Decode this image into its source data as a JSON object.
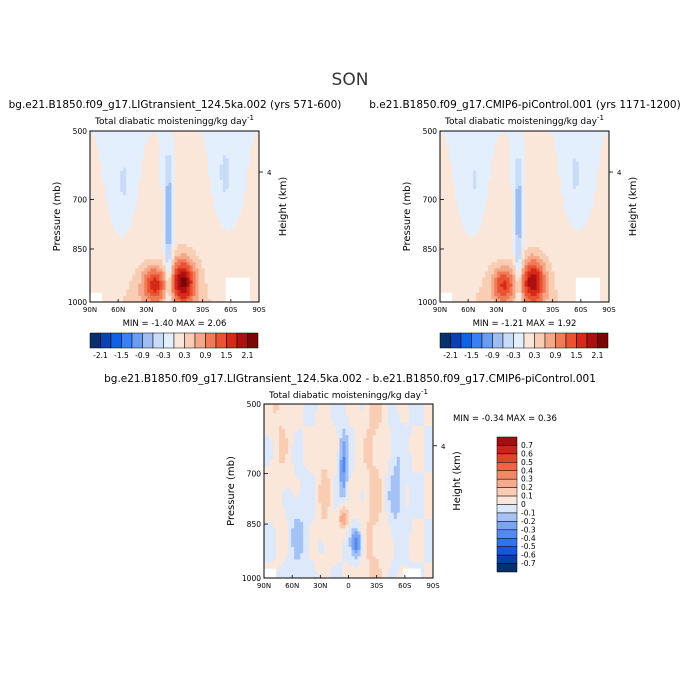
{
  "page_title": "SON",
  "colors": {
    "neg": [
      "#08306b",
      "#0a42b0",
      "#1060e8",
      "#3b7ff5",
      "#6a9cf0",
      "#9fbdf2",
      "#c9dcf7",
      "#e4effd"
    ],
    "pos": [
      "#fbe6da",
      "#f9cdb3",
      "#f5a789",
      "#f07b57",
      "#ea5233",
      "#d52a17",
      "#ad1010",
      "#7a0606"
    ],
    "diff_neg": [
      "#08306b",
      "#0a3fa8",
      "#1658dc",
      "#2f72f0",
      "#5289f2",
      "#7ba5f2",
      "#a4c2f4",
      "#dde9fb"
    ],
    "diff_pos": [
      "#fbe6da",
      "#f9cdb3",
      "#f5ab8c",
      "#f28868",
      "#ee6545",
      "#e0452a",
      "#c8261a",
      "#a01010"
    ],
    "background_field": "#dbe8fa"
  },
  "chart_data": [
    {
      "type": "heatmap",
      "title": "bg.e21.B1850.f09_g17.LIGtransient_124.5ka.002 (yrs 571-600)",
      "subtitle": "Total diabatic moistening",
      "units": "g/kg day",
      "units_exp": "-1",
      "ylabel": "Pressure (mb)",
      "y2label": "Height (km)",
      "xticks": [
        "90N",
        "60N",
        "30N",
        "0",
        "30S",
        "60S",
        "90S"
      ],
      "yticks": [
        "500",
        "700",
        "850",
        "1000"
      ],
      "y2ticks": [
        "4"
      ],
      "min_label": "MIN = ",
      "min_value": "-1.40",
      "max_label": "MAX = ",
      "max_value": "2.06",
      "colorbar_labels": [
        "-2.1",
        "-1.5",
        "-0.9",
        "-0.3",
        "0.3",
        "0.9",
        "1.5",
        "2.1"
      ]
    },
    {
      "type": "heatmap",
      "title": "b.e21.B1850.f09_g17.CMIP6-piControl.001 (yrs 1171-1200)",
      "subtitle": "Total diabatic moistening",
      "units": "g/kg day",
      "units_exp": "-1",
      "ylabel": "Pressure (mb)",
      "y2label": "Height (km)",
      "xticks": [
        "90N",
        "60N",
        "30N",
        "0",
        "30S",
        "60S",
        "90S"
      ],
      "yticks": [
        "500",
        "700",
        "850",
        "1000"
      ],
      "y2ticks": [
        "4"
      ],
      "min_label": "MIN = ",
      "min_value": "-1.21",
      "max_label": "MAX = ",
      "max_value": "1.92",
      "colorbar_labels": [
        "-2.1",
        "-1.5",
        "-0.9",
        "-0.3",
        "0.3",
        "0.9",
        "1.5",
        "2.1"
      ]
    },
    {
      "type": "heatmap",
      "title": "bg.e21.B1850.f09_g17.LIGtransient_124.5ka.002 - b.e21.B1850.f09_g17.CMIP6-piControl.001",
      "subtitle": "Total diabatic moistening",
      "units": "g/kg day",
      "units_exp": "-1",
      "ylabel": "Pressure (mb)",
      "y2label": "Height (km)",
      "xticks": [
        "90N",
        "60N",
        "30N",
        "0",
        "30S",
        "60S",
        "90S"
      ],
      "yticks": [
        "500",
        "700",
        "850",
        "1000"
      ],
      "y2ticks": [
        "4"
      ],
      "min_label": "MIN = ",
      "min_value": "-0.34",
      "max_label": "MAX = ",
      "max_value": "0.36",
      "colorbar_labels": [
        "0.7",
        "0.6",
        "0.5",
        "0.4",
        "0.3",
        "0.2",
        "0.1",
        "0",
        "-0.1",
        "-0.2",
        "-0.3",
        "-0.4",
        "-0.5",
        "-0.6",
        "-0.7"
      ]
    }
  ]
}
